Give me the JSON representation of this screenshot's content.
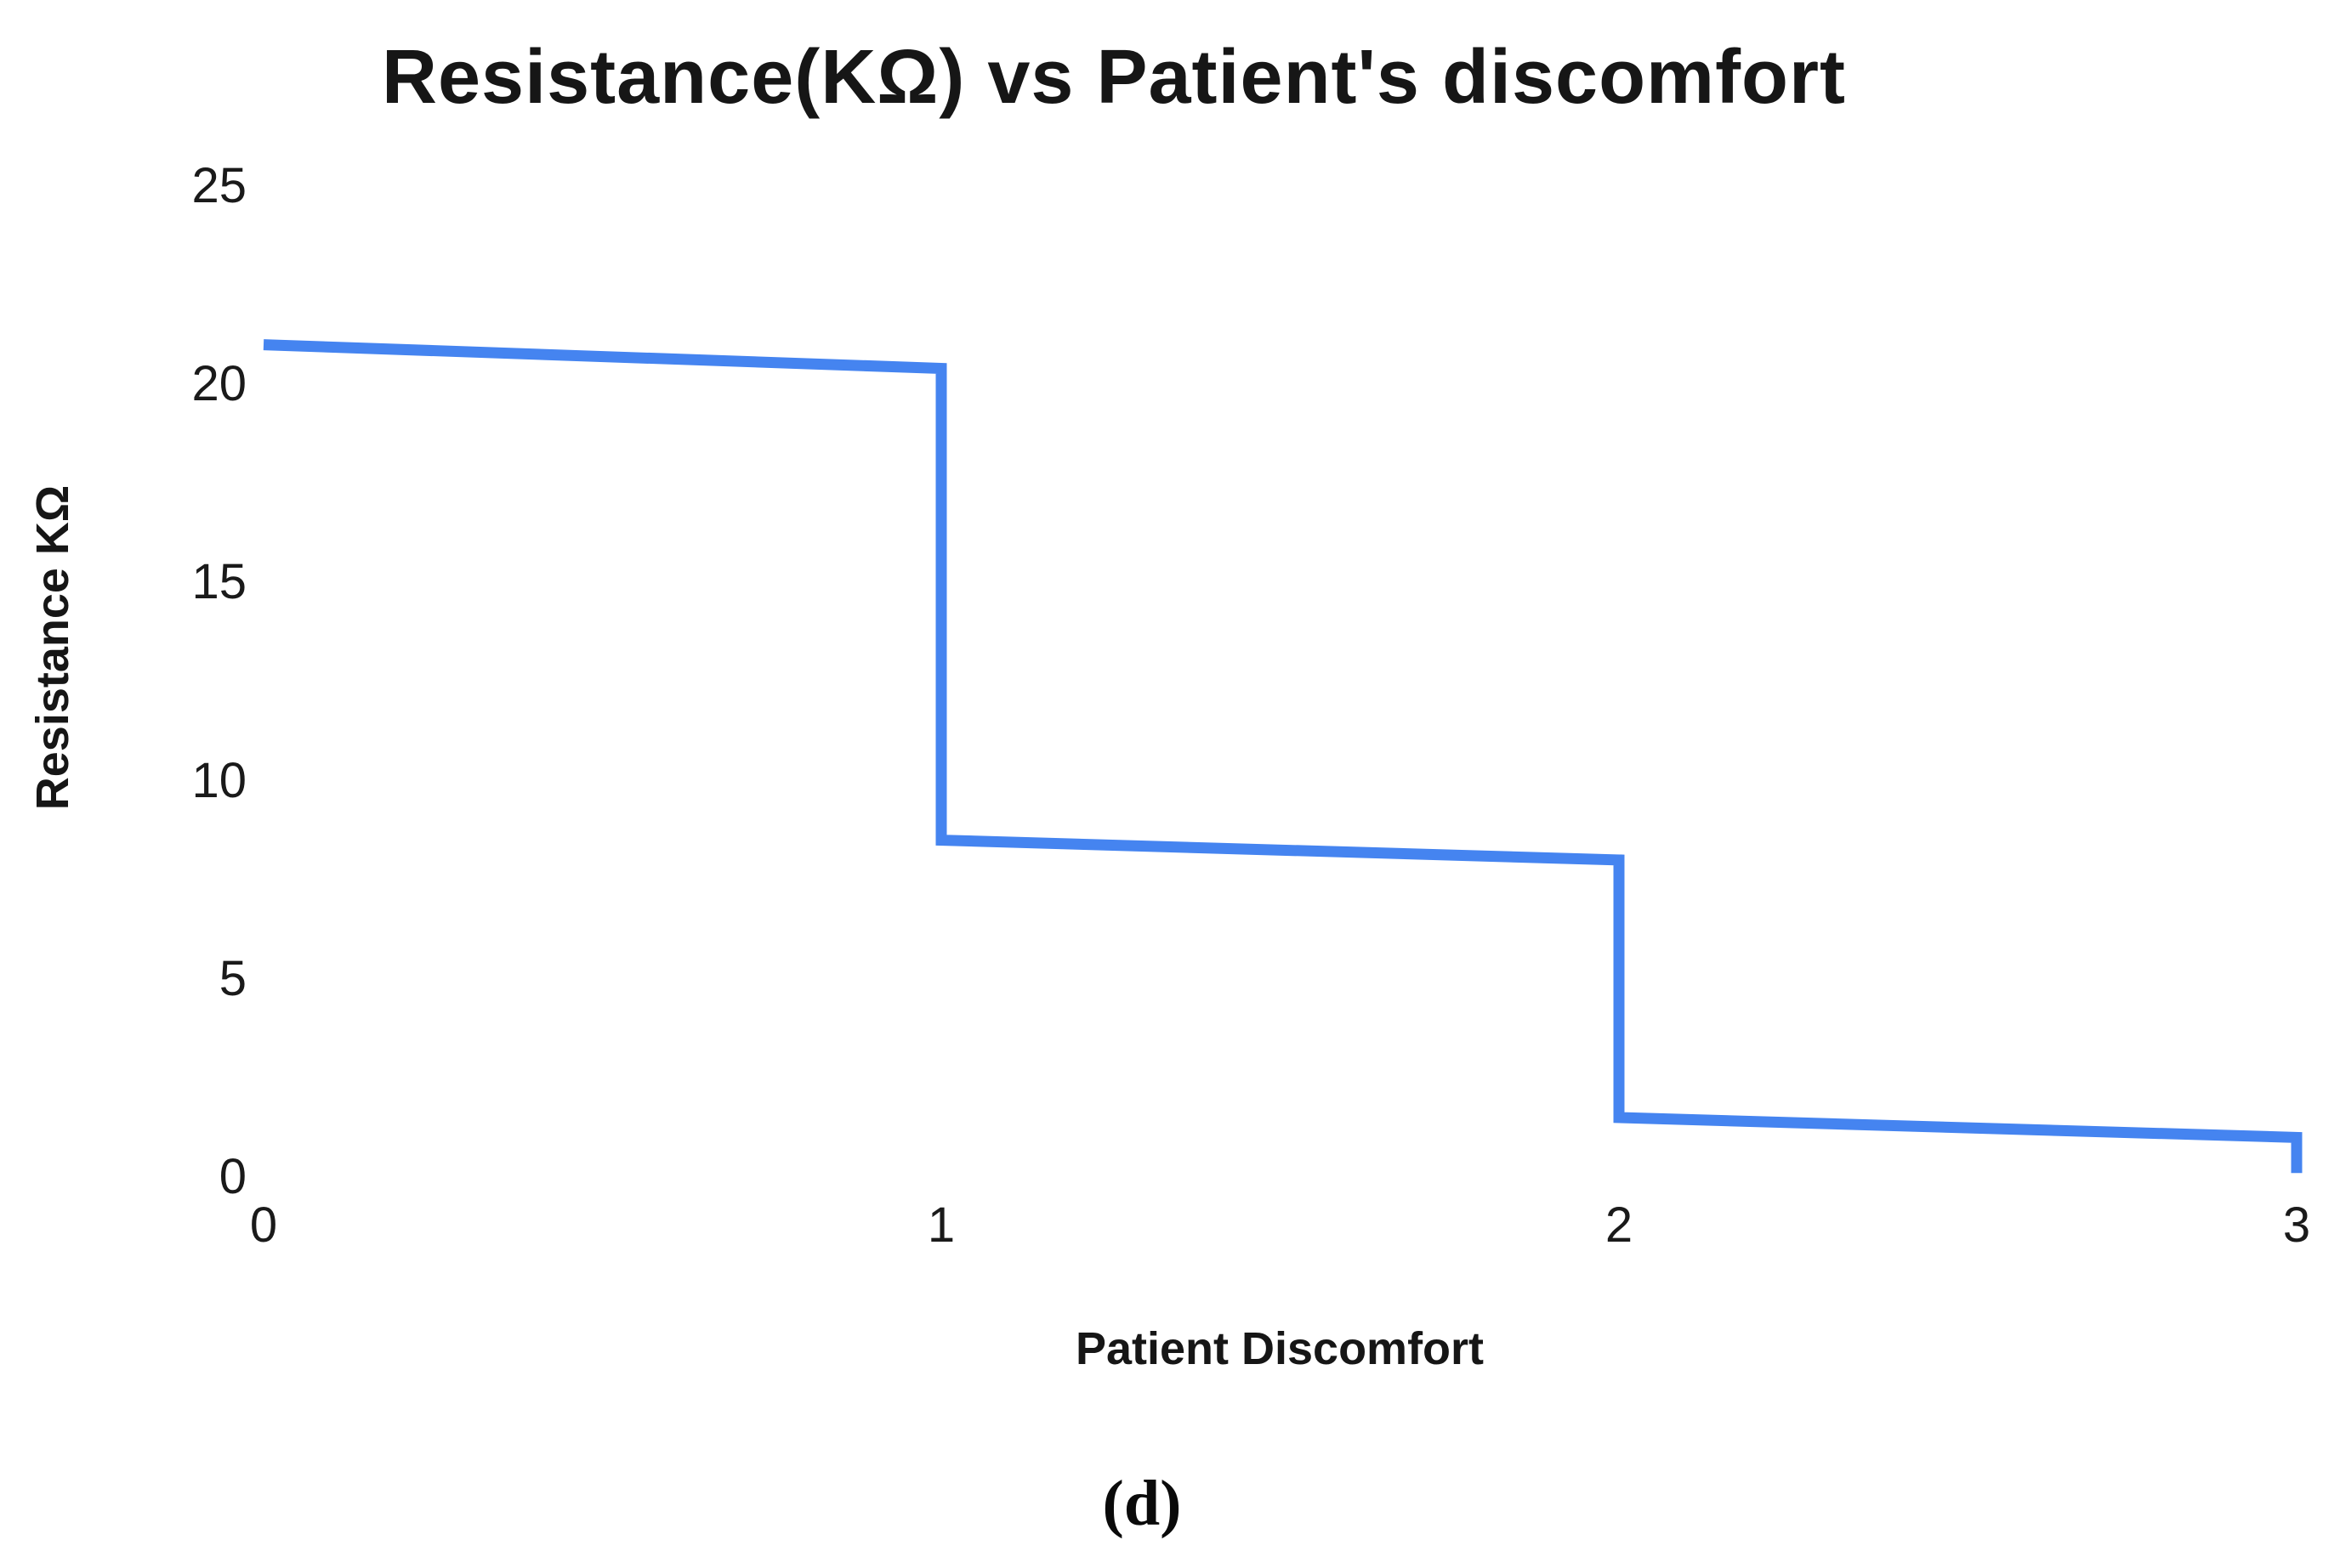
{
  "title": "Resistance(KΩ) vs Patient's discomfort",
  "caption": "(d)",
  "chart_data": {
    "type": "line",
    "title": "Resistance(KΩ) vs Patient's discomfort",
    "xlabel": "Patient Discomfort",
    "ylabel": "Resistance KΩ",
    "x_ticks": [
      0,
      1,
      2,
      3
    ],
    "y_ticks": [
      25,
      20,
      15,
      10,
      5,
      0
    ],
    "xlim": [
      0,
      3
    ],
    "ylim": [
      0,
      25
    ],
    "grid": false,
    "axis_lines": false,
    "legend_position": "none",
    "line_color": "#4584F0",
    "background_color": "#ffffff",
    "series": [
      {
        "name": "Resistance",
        "points": [
          {
            "x": 0,
            "y": 21.0
          },
          {
            "x": 1,
            "y": 20.4
          },
          {
            "x": 1,
            "y": 8.5
          },
          {
            "x": 2,
            "y": 8.0
          },
          {
            "x": 2,
            "y": 1.5
          },
          {
            "x": 3,
            "y": 1.0
          },
          {
            "x": 3,
            "y": 0.1
          }
        ]
      }
    ]
  }
}
